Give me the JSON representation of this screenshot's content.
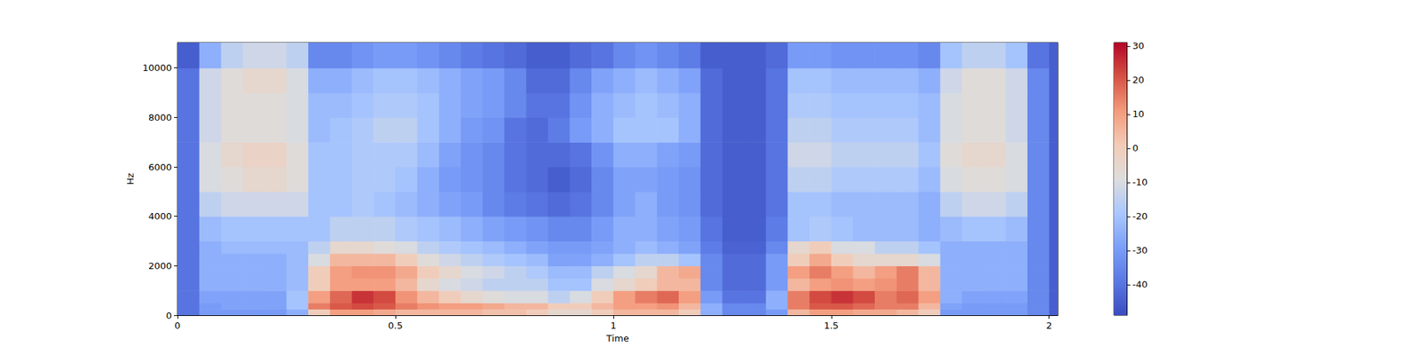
{
  "chart_data": {
    "type": "heatmap",
    "x_label": "Time",
    "y_label": "Hz",
    "color": "coolwarm",
    "xlim": [
      0,
      2.02
    ],
    "xticks": [
      0,
      0.5,
      1,
      1.5,
      2
    ],
    "ylim": [
      0,
      11025
    ],
    "yticks": [
      0,
      2000,
      4000,
      6000,
      8000,
      10000
    ],
    "colorbar_range": [
      -49,
      31
    ],
    "colorbar_ticks": [
      -40,
      -30,
      -20,
      -10,
      0,
      10,
      20,
      30
    ],
    "x_edges": [
      0,
      0.05,
      0.1,
      0.15,
      0.2,
      0.25,
      0.3,
      0.35,
      0.4,
      0.45,
      0.5,
      0.55,
      0.6,
      0.65,
      0.7,
      0.75,
      0.8,
      0.85,
      0.9,
      0.95,
      1,
      1.05,
      1.1,
      1.15,
      1.2,
      1.25,
      1.3,
      1.35,
      1.4,
      1.45,
      1.5,
      1.55,
      1.6,
      1.65,
      1.7,
      1.75,
      1.8,
      1.85,
      1.9,
      1.95,
      2,
      2.02
    ],
    "y_edges": [
      0,
      250,
      500,
      1000,
      1500,
      2000,
      2500,
      3000,
      4000,
      5000,
      6000,
      7000,
      8000,
      9000,
      10000,
      11025
    ],
    "cells": [
      [
        -40,
        -30,
        -30,
        -30,
        -30,
        -25,
        0,
        10,
        10,
        8,
        5,
        5,
        5,
        5,
        3,
        3,
        0,
        -5,
        -5,
        0,
        5,
        5,
        5,
        0,
        -25,
        -35,
        -35,
        -30,
        5,
        10,
        10,
        8,
        8,
        5,
        0,
        -30,
        -30,
        -30,
        -30,
        -35,
        -45
      ],
      [
        -40,
        -30,
        -28,
        -28,
        -28,
        -20,
        15,
        20,
        22,
        20,
        15,
        12,
        10,
        10,
        8,
        5,
        5,
        0,
        0,
        5,
        10,
        10,
        12,
        5,
        -25,
        -35,
        -35,
        -25,
        15,
        20,
        20,
        18,
        15,
        15,
        5,
        -28,
        -30,
        -30,
        -30,
        -35,
        -45
      ],
      [
        -40,
        -28,
        -28,
        -28,
        -28,
        -20,
        10,
        18,
        25,
        22,
        12,
        5,
        0,
        -5,
        -8,
        -10,
        -10,
        -15,
        -10,
        0,
        10,
        15,
        18,
        10,
        -30,
        -40,
        -40,
        -25,
        15,
        22,
        25,
        22,
        15,
        18,
        10,
        -25,
        -28,
        -28,
        -28,
        -35,
        -45
      ],
      [
        -40,
        -25,
        -25,
        -25,
        -25,
        -22,
        0,
        10,
        10,
        10,
        5,
        -5,
        -10,
        -12,
        -15,
        -15,
        -15,
        -20,
        -20,
        -10,
        -5,
        0,
        5,
        5,
        -35,
        -42,
        -42,
        -30,
        5,
        10,
        12,
        10,
        12,
        15,
        5,
        -25,
        -25,
        -25,
        -25,
        -35,
        -45
      ],
      [
        -40,
        -25,
        -25,
        -25,
        -25,
        -22,
        0,
        10,
        12,
        12,
        8,
        0,
        -5,
        -10,
        -12,
        -15,
        -18,
        -22,
        -22,
        -15,
        -10,
        -5,
        5,
        8,
        -35,
        -42,
        -42,
        -30,
        10,
        15,
        10,
        5,
        10,
        15,
        5,
        -25,
        -25,
        -25,
        -25,
        -35,
        -45
      ],
      [
        -40,
        -25,
        -25,
        -25,
        -25,
        -22,
        -10,
        5,
        5,
        5,
        0,
        -8,
        -12,
        -15,
        -18,
        -20,
        -22,
        -28,
        -28,
        -25,
        -20,
        -15,
        -15,
        -20,
        -35,
        -42,
        -42,
        -30,
        0,
        8,
        0,
        -5,
        -5,
        -5,
        -10,
        -25,
        -25,
        -25,
        -25,
        -35,
        -45
      ],
      [
        -40,
        -25,
        -22,
        -22,
        -22,
        -22,
        -15,
        -5,
        -5,
        -8,
        -10,
        -15,
        -18,
        -20,
        -22,
        -25,
        -28,
        -30,
        -30,
        -28,
        -25,
        -22,
        -25,
        -28,
        -38,
        -44,
        -44,
        -35,
        -5,
        0,
        -10,
        -10,
        -15,
        -15,
        -20,
        -25,
        -25,
        -25,
        -25,
        -35,
        -45
      ],
      [
        -40,
        -22,
        -20,
        -20,
        -20,
        -20,
        -20,
        -15,
        -15,
        -15,
        -18,
        -20,
        -22,
        -25,
        -28,
        -30,
        -32,
        -35,
        -35,
        -30,
        -25,
        -25,
        -28,
        -30,
        -40,
        -45,
        -45,
        -38,
        -20,
        -18,
        -20,
        -22,
        -22,
        -22,
        -25,
        -22,
        -20,
        -20,
        -22,
        -35,
        -45
      ],
      [
        -40,
        -15,
        -12,
        -12,
        -12,
        -12,
        -20,
        -20,
        -18,
        -20,
        -22,
        -25,
        -28,
        -30,
        -35,
        -38,
        -40,
        -42,
        -40,
        -35,
        -28,
        -25,
        -30,
        -32,
        -42,
        -45,
        -45,
        -40,
        -20,
        -20,
        -22,
        -22,
        -22,
        -22,
        -25,
        -15,
        -12,
        -12,
        -15,
        -35,
        -45
      ],
      [
        -40,
        -10,
        -8,
        -5,
        -5,
        -8,
        -20,
        -20,
        -18,
        -18,
        -20,
        -25,
        -30,
        -32,
        -35,
        -40,
        -42,
        -45,
        -42,
        -35,
        -28,
        -28,
        -30,
        -32,
        -42,
        -45,
        -45,
        -40,
        -15,
        -15,
        -18,
        -18,
        -18,
        -18,
        -22,
        -10,
        -8,
        -8,
        -10,
        -35,
        -45
      ],
      [
        -40,
        -10,
        -5,
        -3,
        -3,
        -8,
        -20,
        -20,
        -18,
        -18,
        -18,
        -22,
        -28,
        -32,
        -35,
        -40,
        -42,
        -42,
        -40,
        -32,
        -25,
        -25,
        -28,
        -30,
        -42,
        -45,
        -45,
        -40,
        -12,
        -12,
        -15,
        -15,
        -15,
        -15,
        -20,
        -8,
        -5,
        -5,
        -10,
        -35,
        -45
      ],
      [
        -40,
        -12,
        -8,
        -8,
        -8,
        -10,
        -22,
        -20,
        -18,
        -15,
        -15,
        -20,
        -25,
        -30,
        -32,
        -40,
        -42,
        -38,
        -30,
        -25,
        -20,
        -20,
        -20,
        -25,
        -42,
        -45,
        -45,
        -40,
        -15,
        -15,
        -18,
        -18,
        -18,
        -18,
        -22,
        -10,
        -8,
        -8,
        -12,
        -35,
        -45
      ],
      [
        -40,
        -12,
        -8,
        -8,
        -8,
        -10,
        -22,
        -22,
        -20,
        -18,
        -18,
        -20,
        -25,
        -28,
        -30,
        -35,
        -40,
        -40,
        -32,
        -25,
        -22,
        -20,
        -22,
        -25,
        -42,
        -45,
        -45,
        -40,
        -18,
        -18,
        -20,
        -20,
        -20,
        -20,
        -22,
        -10,
        -8,
        -8,
        -12,
        -35,
        -45
      ],
      [
        -40,
        -12,
        -8,
        -5,
        -5,
        -10,
        -25,
        -25,
        -22,
        -20,
        -20,
        -22,
        -25,
        -28,
        -30,
        -35,
        -42,
        -42,
        -35,
        -28,
        -25,
        -22,
        -25,
        -28,
        -42,
        -45,
        -45,
        -40,
        -20,
        -20,
        -22,
        -22,
        -22,
        -22,
        -25,
        -12,
        -8,
        -8,
        -12,
        -35,
        -45
      ],
      [
        -45,
        -25,
        -15,
        -12,
        -12,
        -15,
        -35,
        -35,
        -32,
        -30,
        -30,
        -32,
        -35,
        -38,
        -40,
        -42,
        -45,
        -45,
        -42,
        -40,
        -35,
        -32,
        -35,
        -38,
        -45,
        -45,
        -45,
        -42,
        -30,
        -30,
        -32,
        -32,
        -32,
        -32,
        -35,
        -20,
        -15,
        -15,
        -20,
        -40,
        -45
      ]
    ]
  }
}
